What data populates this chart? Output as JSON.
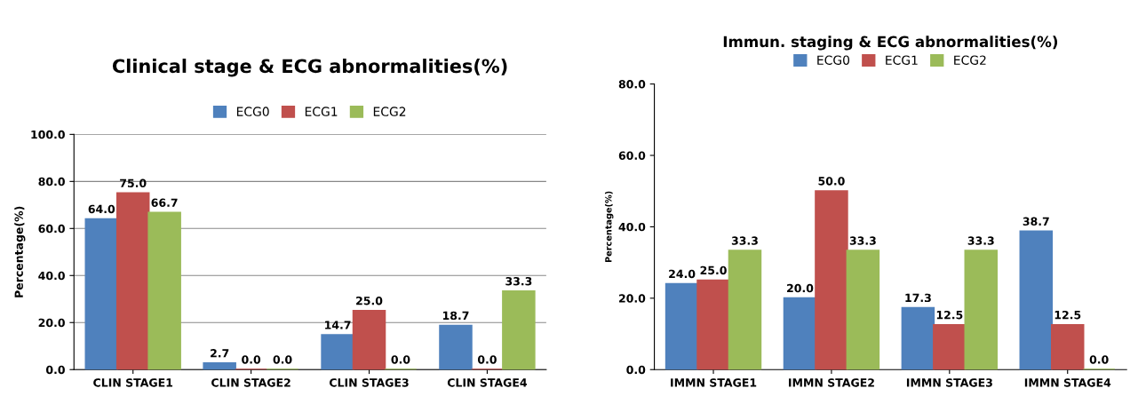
{
  "chart_data": [
    {
      "type": "bar",
      "title": "Clinical stage & ECG abnormalities(%)",
      "ylabel": "Percentage(%)",
      "categories": [
        "CLIN STAGE1",
        "CLIN STAGE2",
        "CLIN STAGE3",
        "CLIN STAGE4"
      ],
      "series": [
        {
          "name": "ECG0",
          "color": "#4f81bd",
          "values": [
            64.0,
            2.7,
            14.7,
            18.7
          ],
          "value_labels": [
            "64.0",
            "2.7",
            "14.7",
            "18.7"
          ]
        },
        {
          "name": "ECG1",
          "color": "#c0504d",
          "values": [
            75.0,
            0.0,
            25.0,
            0.0
          ],
          "value_labels": [
            "75.0",
            "0.0",
            "25.0",
            "0.0"
          ]
        },
        {
          "name": "ECG2",
          "color": "#9bbb59",
          "values": [
            66.7,
            0.0,
            0.0,
            33.3
          ],
          "value_labels": [
            "66.7",
            "0.0",
            "0.0",
            "33.3"
          ]
        }
      ],
      "ylim": [
        0,
        100
      ],
      "yticks": [
        {
          "value": 0,
          "label": "0.0"
        },
        {
          "value": 20,
          "label": "20.0"
        },
        {
          "value": 40,
          "label": "40.0"
        },
        {
          "value": 60,
          "label": "60.0"
        },
        {
          "value": 80,
          "label": "80.0"
        },
        {
          "value": 100,
          "label": "100.0"
        }
      ],
      "grid": "y",
      "legend": "top"
    },
    {
      "type": "bar",
      "title": "Immun. staging & ECG abnormalities(%)",
      "ylabel": "Percentage(%)",
      "categories": [
        "IMMN STAGE1",
        "IMMN STAGE2",
        "IMMN STAGE3",
        "IMMN STAGE4"
      ],
      "series": [
        {
          "name": "ECG0",
          "color": "#4f81bd",
          "values": [
            24.0,
            20.0,
            17.3,
            38.7
          ],
          "value_labels": [
            "24.0",
            "20.0",
            "17.3",
            "38.7"
          ]
        },
        {
          "name": "ECG1",
          "color": "#c0504d",
          "values": [
            25.0,
            50.0,
            12.5,
            12.5
          ],
          "value_labels": [
            "25.0",
            "50.0",
            "12.5",
            "12.5"
          ]
        },
        {
          "name": "ECG2",
          "color": "#9bbb59",
          "values": [
            33.3,
            33.3,
            33.3,
            0.0
          ],
          "value_labels": [
            "33.3",
            "33.3",
            "33.3",
            "0.0"
          ]
        }
      ],
      "ylim": [
        0,
        80
      ],
      "yticks": [
        {
          "value": 0,
          "label": "0.0"
        },
        {
          "value": 20,
          "label": "20.0"
        },
        {
          "value": 40,
          "label": "40.0"
        },
        {
          "value": 60,
          "label": "60.0"
        },
        {
          "value": 80,
          "label": "80.0"
        }
      ],
      "legend": "top"
    }
  ]
}
